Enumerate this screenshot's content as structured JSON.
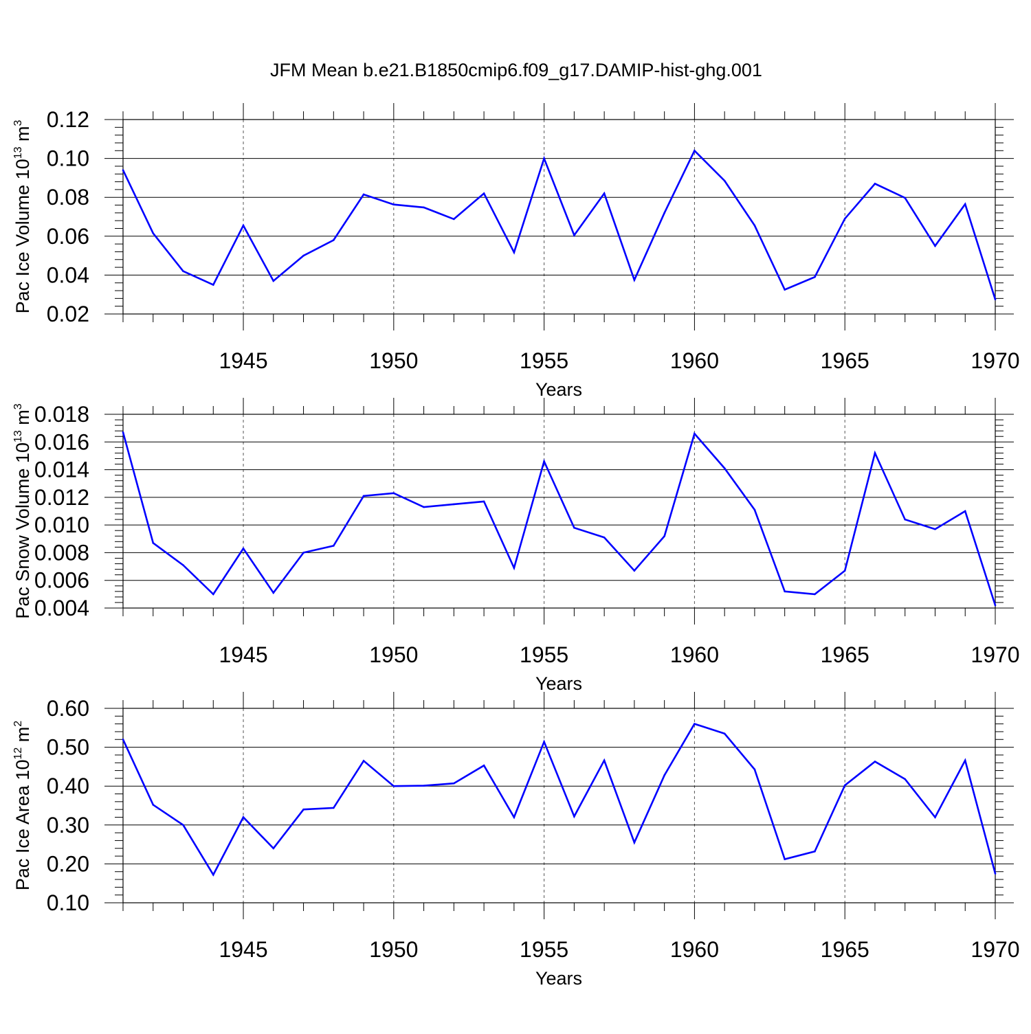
{
  "title": "JFM Mean b.e21.B1850cmip6.f09_g17.DAMIP-hist-ghg.001",
  "line_color": "#0000ff",
  "chart_data": [
    {
      "type": "line",
      "ylabel_main": "Pac Ice Volume 10",
      "ylabel_sup1": "13",
      "ylabel_unit": " m",
      "ylabel_sup2": "3",
      "xlabel": "Years",
      "xlim": [
        1941,
        1970
      ],
      "ylim": [
        0.02,
        0.12
      ],
      "yticks": [
        0.02,
        0.04,
        0.06,
        0.08,
        0.1,
        0.12
      ],
      "ytick_labels": [
        "0.02",
        "0.04",
        "0.06",
        "0.08",
        "0.10",
        "0.12"
      ],
      "xticks": [
        1945,
        1950,
        1955,
        1960,
        1965,
        1970
      ],
      "xtick_labels": [
        "1945",
        "1950",
        "1955",
        "1960",
        "1965",
        "1970"
      ],
      "x": [
        1941,
        1942,
        1943,
        1944,
        1945,
        1946,
        1947,
        1948,
        1949,
        1950,
        1951,
        1952,
        1953,
        1954,
        1955,
        1956,
        1957,
        1958,
        1959,
        1960,
        1961,
        1962,
        1963,
        1964,
        1965,
        1966,
        1967,
        1968,
        1969,
        1970
      ],
      "values": [
        0.094,
        0.0615,
        0.042,
        0.035,
        0.0655,
        0.037,
        0.05,
        0.058,
        0.0815,
        0.0763,
        0.0748,
        0.0688,
        0.082,
        0.0517,
        0.1,
        0.0605,
        0.082,
        0.0375,
        0.072,
        0.104,
        0.0885,
        0.0655,
        0.0325,
        0.039,
        0.069,
        0.087,
        0.0797,
        0.055,
        0.0765,
        0.0275
      ]
    },
    {
      "type": "line",
      "ylabel_main": "Pac Snow Volume 10",
      "ylabel_sup1": "13",
      "ylabel_unit": " m",
      "ylabel_sup2": "3",
      "xlabel": "Years",
      "xlim": [
        1941,
        1970
      ],
      "ylim": [
        0.004,
        0.018
      ],
      "yticks": [
        0.004,
        0.006,
        0.008,
        0.01,
        0.012,
        0.014,
        0.016,
        0.018
      ],
      "ytick_labels": [
        "0.004",
        "0.006",
        "0.008",
        "0.010",
        "0.012",
        "0.014",
        "0.016",
        "0.018"
      ],
      "xticks": [
        1945,
        1950,
        1955,
        1960,
        1965,
        1970
      ],
      "xtick_labels": [
        "1945",
        "1950",
        "1955",
        "1960",
        "1965",
        "1970"
      ],
      "x": [
        1941,
        1942,
        1943,
        1944,
        1945,
        1946,
        1947,
        1948,
        1949,
        1950,
        1951,
        1952,
        1953,
        1954,
        1955,
        1956,
        1957,
        1958,
        1959,
        1960,
        1961,
        1962,
        1963,
        1964,
        1965,
        1966,
        1967,
        1968,
        1969,
        1970
      ],
      "values": [
        0.0167,
        0.0087,
        0.0071,
        0.005,
        0.0083,
        0.0051,
        0.008,
        0.0085,
        0.0121,
        0.0123,
        0.0113,
        0.0115,
        0.0117,
        0.0069,
        0.0146,
        0.0098,
        0.0091,
        0.0067,
        0.0092,
        0.0166,
        0.0141,
        0.0111,
        0.0052,
        0.005,
        0.0067,
        0.0152,
        0.0104,
        0.0097,
        0.011,
        0.0042
      ]
    },
    {
      "type": "line",
      "ylabel_main": "Pac Ice Area 10",
      "ylabel_sup1": "12",
      "ylabel_unit": " m",
      "ylabel_sup2": "2",
      "xlabel": "Years",
      "xlim": [
        1941,
        1970
      ],
      "ylim": [
        0.1,
        0.6
      ],
      "yticks": [
        0.1,
        0.2,
        0.3,
        0.4,
        0.5,
        0.6
      ],
      "ytick_labels": [
        "0.10",
        "0.20",
        "0.30",
        "0.40",
        "0.50",
        "0.60"
      ],
      "xticks": [
        1945,
        1950,
        1955,
        1960,
        1965,
        1970
      ],
      "xtick_labels": [
        "1945",
        "1950",
        "1955",
        "1960",
        "1965",
        "1970"
      ],
      "x": [
        1941,
        1942,
        1943,
        1944,
        1945,
        1946,
        1947,
        1948,
        1949,
        1950,
        1951,
        1952,
        1953,
        1954,
        1955,
        1956,
        1957,
        1958,
        1959,
        1960,
        1961,
        1962,
        1963,
        1964,
        1965,
        1966,
        1967,
        1968,
        1969,
        1970
      ],
      "values": [
        0.52,
        0.352,
        0.3,
        0.172,
        0.32,
        0.24,
        0.34,
        0.344,
        0.465,
        0.4,
        0.401,
        0.407,
        0.453,
        0.32,
        0.514,
        0.322,
        0.466,
        0.255,
        0.428,
        0.56,
        0.535,
        0.443,
        0.212,
        0.232,
        0.402,
        0.463,
        0.418,
        0.32,
        0.466,
        0.175
      ]
    }
  ]
}
